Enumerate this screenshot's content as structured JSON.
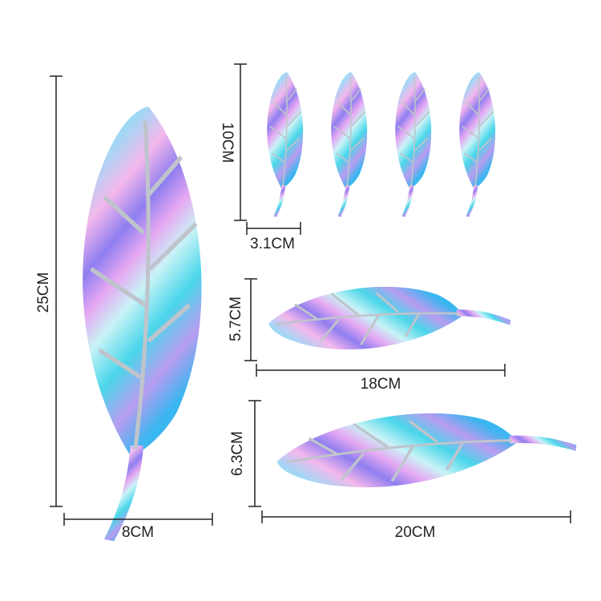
{
  "items": [
    {
      "height": "25CM",
      "width": "8CM"
    },
    {
      "height": "10CM",
      "width": "3.1CM"
    },
    {
      "height": "5.7CM",
      "width": "18CM"
    },
    {
      "height": "6.3CM",
      "width": "20CM"
    }
  ]
}
